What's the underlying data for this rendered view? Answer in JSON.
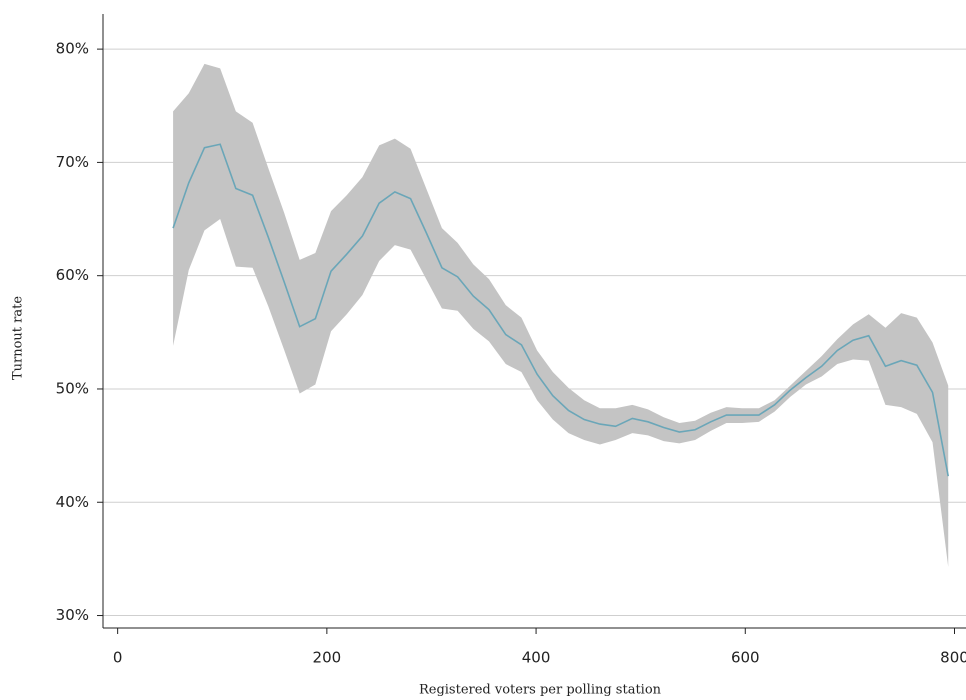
{
  "chart_data": {
    "type": "line_band",
    "xlabel": "Registered voters per polling station",
    "ylabel": "Turnout rate",
    "x": [
      53,
      68,
      83,
      98,
      113,
      129,
      144,
      159,
      174,
      189,
      204,
      219,
      234,
      250,
      265,
      280,
      295,
      310,
      325,
      340,
      355,
      371,
      386,
      401,
      416,
      431,
      446,
      461,
      476,
      492,
      507,
      522,
      537,
      552,
      567,
      582,
      597,
      613,
      628,
      643,
      658,
      673,
      688,
      703,
      718,
      734,
      749,
      764,
      779,
      794
    ],
    "series": [
      {
        "color": "#6aa6b8",
        "band_color": "#c4c4c4",
        "values": [
          64.2,
          68.2,
          71.3,
          71.6,
          67.7,
          67.1,
          63.4,
          59.5,
          55.5,
          56.2,
          60.4,
          61.9,
          63.5,
          66.4,
          67.4,
          66.8,
          63.8,
          60.7,
          59.9,
          58.2,
          57.0,
          54.8,
          53.9,
          51.3,
          49.4,
          48.1,
          47.3,
          46.9,
          46.7,
          47.4,
          47.1,
          46.6,
          46.2,
          46.4,
          47.1,
          47.7,
          47.7,
          47.7,
          48.6,
          49.9,
          51.0,
          52.0,
          53.4,
          54.3,
          54.7,
          52.0,
          52.5,
          52.1,
          49.7,
          42.3
        ],
        "upper": [
          74.5,
          76.1,
          78.7,
          78.3,
          74.5,
          73.5,
          69.5,
          65.6,
          61.4,
          62.0,
          65.7,
          67.1,
          68.7,
          71.5,
          72.1,
          71.2,
          67.7,
          64.2,
          62.9,
          61.0,
          59.7,
          57.4,
          56.3,
          53.4,
          51.5,
          50.1,
          49.0,
          48.3,
          48.3,
          48.6,
          48.2,
          47.5,
          47.0,
          47.2,
          47.9,
          48.4,
          48.3,
          48.3,
          49.0,
          50.3,
          51.6,
          52.9,
          54.4,
          55.7,
          56.6,
          55.4,
          56.7,
          56.3,
          54.1,
          50.3
        ],
        "lower": [
          53.8,
          60.5,
          64.0,
          65.0,
          60.8,
          60.7,
          57.3,
          53.5,
          49.6,
          50.4,
          55.1,
          56.6,
          58.3,
          61.3,
          62.7,
          62.3,
          59.7,
          57.1,
          56.9,
          55.3,
          54.2,
          52.2,
          51.5,
          49.0,
          47.3,
          46.1,
          45.5,
          45.1,
          45.5,
          46.1,
          45.9,
          45.4,
          45.2,
          45.5,
          46.3,
          47.0,
          47.0,
          47.1,
          48.0,
          49.3,
          50.4,
          51.1,
          52.2,
          52.6,
          52.5,
          48.6,
          48.4,
          47.8,
          45.3,
          34.3
        ]
      }
    ],
    "xlim": [
      -14,
      811
    ],
    "xticks": [
      0,
      200,
      400,
      600,
      800
    ],
    "ylim": [
      28.9,
      83.1
    ],
    "yticks": [
      {
        "value": 30,
        "label": "30%"
      },
      {
        "value": 40,
        "label": "40%"
      },
      {
        "value": 50,
        "label": "50%"
      },
      {
        "value": 60,
        "label": "60%"
      },
      {
        "value": 70,
        "label": "70%"
      },
      {
        "value": 80,
        "label": "80%"
      }
    ],
    "grid": true
  }
}
